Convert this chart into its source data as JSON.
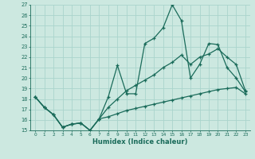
{
  "xlabel": "Humidex (Indice chaleur)",
  "bg_color": "#cce8e0",
  "grid_color": "#aad4cc",
  "line_color": "#1a6b5a",
  "xlim": [
    -0.5,
    23.5
  ],
  "ylim": [
    15,
    27
  ],
  "xticks": [
    0,
    1,
    2,
    3,
    4,
    5,
    6,
    7,
    8,
    9,
    10,
    11,
    12,
    13,
    14,
    15,
    16,
    17,
    18,
    19,
    20,
    21,
    22,
    23
  ],
  "yticks": [
    15,
    16,
    17,
    18,
    19,
    20,
    21,
    22,
    23,
    24,
    25,
    26,
    27
  ],
  "line1_x": [
    0,
    1,
    2,
    3,
    4,
    5,
    6,
    7,
    8,
    9,
    10,
    11,
    12,
    13,
    14,
    15,
    16,
    17,
    18,
    19,
    20,
    21,
    22,
    23
  ],
  "line1_y": [
    18.2,
    17.2,
    16.5,
    15.3,
    15.6,
    15.7,
    15.0,
    16.1,
    18.2,
    21.2,
    18.5,
    18.5,
    23.3,
    23.8,
    24.8,
    27.0,
    25.5,
    20.0,
    21.3,
    23.3,
    23.2,
    21.0,
    20.0,
    18.7
  ],
  "line2_x": [
    0,
    1,
    2,
    3,
    4,
    5,
    6,
    7,
    8,
    9,
    10,
    11,
    12,
    13,
    14,
    15,
    16,
    17,
    18,
    19,
    20,
    21,
    22,
    23
  ],
  "line2_y": [
    18.2,
    17.2,
    16.5,
    15.3,
    15.6,
    15.7,
    15.0,
    16.1,
    17.2,
    18.0,
    18.8,
    19.3,
    19.8,
    20.3,
    21.0,
    21.5,
    22.2,
    21.3,
    22.0,
    22.3,
    22.8,
    22.0,
    21.3,
    18.8
  ],
  "line3_x": [
    0,
    1,
    2,
    3,
    4,
    5,
    6,
    7,
    8,
    9,
    10,
    11,
    12,
    13,
    14,
    15,
    16,
    17,
    18,
    19,
    20,
    21,
    22,
    23
  ],
  "line3_y": [
    18.2,
    17.2,
    16.5,
    15.3,
    15.6,
    15.7,
    15.0,
    16.1,
    16.3,
    16.6,
    16.9,
    17.1,
    17.3,
    17.5,
    17.7,
    17.9,
    18.1,
    18.3,
    18.5,
    18.7,
    18.9,
    19.0,
    19.1,
    18.5
  ]
}
